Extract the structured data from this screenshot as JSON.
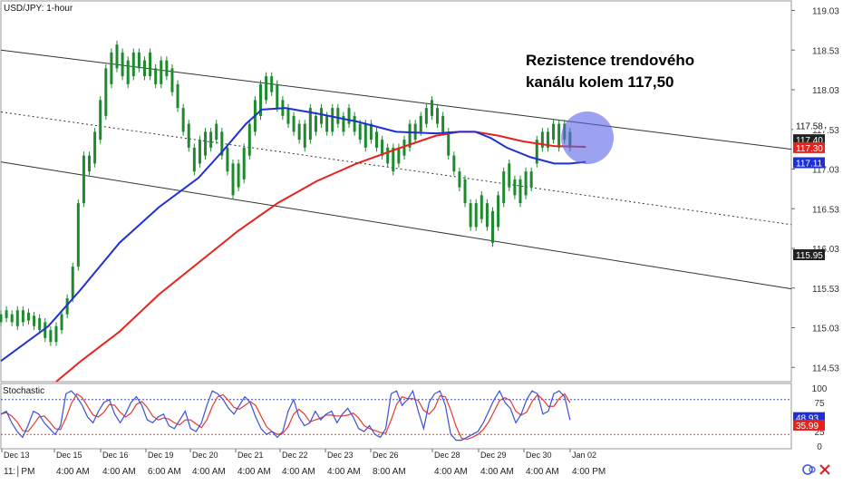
{
  "header": {
    "symbol_label": "USD/JPY: 1-hour"
  },
  "annotation": {
    "line1": "Rezistence trendového",
    "line2": "kanálu kolem 117,50"
  },
  "colors": {
    "ma_fast": "#1f2fd6",
    "ma_slow": "#e8221b",
    "stoch_k": "#3b4fd8",
    "stoch_d": "#e53a2f",
    "candle": "#1e8a2e",
    "highlight": "#5a63e6",
    "price_tag_dark": "#222222",
    "price_tag_red": "#e8221b",
    "price_tag_blue": "#1f2fd6"
  },
  "chart_data": {
    "type": "candlestick",
    "price_axis": {
      "ylim": [
        114.35,
        119.15
      ],
      "tick_labels": [
        "119.03",
        "118.53",
        "118.03",
        "117.53",
        "117.03",
        "116.53",
        "116.03",
        "115.53",
        "115.03",
        "114.53"
      ]
    },
    "x_labels_top": [
      "Dec 13",
      "Dec 15",
      "Dec 16",
      "Dec 19",
      "Dec 20",
      "Dec 21",
      "Dec 22",
      "Dec 23",
      "Dec 26",
      "Dec 28",
      "Dec 29",
      "Dec 30",
      "Jan 02"
    ],
    "x_labels_bottom": [
      "11:│PM",
      "4:00 AM",
      "4:00 AM",
      "6:00 AM",
      "4:00 AM",
      "4:00 AM",
      "4:00 AM",
      "4:00 AM",
      "8:00 AM",
      "4:00 AM",
      "4:00 AM",
      "4:00 AM",
      "4:00 PM"
    ],
    "price_tags": [
      {
        "label": "117.58",
        "value": 117.58,
        "style": "plain"
      },
      {
        "label": "117.40",
        "value": 117.4,
        "style": "dark"
      },
      {
        "label": "117.30",
        "value": 117.3,
        "style": "red"
      },
      {
        "label": "117.11",
        "value": 117.11,
        "style": "blue"
      },
      {
        "label": "115.95",
        "value": 115.95,
        "style": "dark"
      }
    ],
    "channel": {
      "upper": [
        [
          0.0,
          118.53
        ],
        [
          1.0,
          117.28
        ]
      ],
      "middle": [
        [
          0.0,
          117.75
        ],
        [
          1.0,
          116.33
        ]
      ],
      "lower": [
        [
          0.0,
          117.12
        ],
        [
          1.0,
          115.52
        ]
      ]
    },
    "ma_fast": [
      [
        0.0,
        114.61
      ],
      [
        0.03,
        114.83
      ],
      [
        0.06,
        115.05
      ],
      [
        0.1,
        115.5
      ],
      [
        0.15,
        116.1
      ],
      [
        0.2,
        116.55
      ],
      [
        0.25,
        116.92
      ],
      [
        0.28,
        117.25
      ],
      [
        0.31,
        117.6
      ],
      [
        0.33,
        117.78
      ],
      [
        0.36,
        117.8
      ],
      [
        0.4,
        117.73
      ],
      [
        0.45,
        117.63
      ],
      [
        0.5,
        117.5
      ],
      [
        0.55,
        117.48
      ],
      [
        0.58,
        117.5
      ],
      [
        0.6,
        117.5
      ],
      [
        0.62,
        117.42
      ],
      [
        0.64,
        117.3
      ],
      [
        0.67,
        117.18
      ],
      [
        0.7,
        117.1
      ],
      [
        0.72,
        117.1
      ],
      [
        0.74,
        117.12
      ]
    ],
    "ma_slow": [
      [
        0.07,
        114.35
      ],
      [
        0.1,
        114.6
      ],
      [
        0.15,
        114.98
      ],
      [
        0.2,
        115.45
      ],
      [
        0.25,
        115.85
      ],
      [
        0.3,
        116.25
      ],
      [
        0.35,
        116.6
      ],
      [
        0.4,
        116.88
      ],
      [
        0.45,
        117.1
      ],
      [
        0.5,
        117.28
      ],
      [
        0.55,
        117.45
      ],
      [
        0.58,
        117.5
      ],
      [
        0.6,
        117.5
      ],
      [
        0.63,
        117.45
      ],
      [
        0.66,
        117.38
      ],
      [
        0.7,
        117.32
      ],
      [
        0.74,
        117.31
      ]
    ],
    "candles": [
      [
        115.1,
        115.2
      ],
      [
        115.15,
        115.25
      ],
      [
        115.1,
        115.2
      ],
      [
        115.05,
        115.25
      ],
      [
        115.1,
        115.25
      ],
      [
        115.12,
        115.22
      ],
      [
        115.05,
        115.18
      ],
      [
        115.0,
        115.15
      ],
      [
        114.9,
        115.1
      ],
      [
        114.85,
        115.0
      ],
      [
        114.85,
        115.05
      ],
      [
        115.0,
        115.2
      ],
      [
        115.2,
        115.4
      ],
      [
        115.4,
        115.8
      ],
      [
        115.8,
        116.6
      ],
      [
        116.6,
        117.2
      ],
      [
        117.0,
        117.2
      ],
      [
        117.1,
        117.5
      ],
      [
        117.4,
        117.9
      ],
      [
        117.7,
        118.3
      ],
      [
        118.1,
        118.5
      ],
      [
        118.3,
        118.6
      ],
      [
        118.2,
        118.5
      ],
      [
        118.1,
        118.4
      ],
      [
        118.2,
        118.5
      ],
      [
        118.3,
        118.5
      ],
      [
        118.2,
        118.4
      ],
      [
        118.2,
        118.5
      ],
      [
        118.1,
        118.3
      ],
      [
        118.1,
        118.4
      ],
      [
        118.2,
        118.4
      ],
      [
        118.0,
        118.3
      ],
      [
        117.8,
        118.1
      ],
      [
        117.5,
        117.8
      ],
      [
        117.3,
        117.6
      ],
      [
        117.0,
        117.3
      ],
      [
        117.1,
        117.4
      ],
      [
        117.2,
        117.5
      ],
      [
        117.3,
        117.5
      ],
      [
        117.4,
        117.6
      ],
      [
        117.2,
        117.5
      ],
      [
        117.0,
        117.3
      ],
      [
        116.7,
        117.1
      ],
      [
        116.8,
        117.1
      ],
      [
        116.9,
        117.3
      ],
      [
        117.2,
        117.6
      ],
      [
        117.5,
        117.9
      ],
      [
        117.7,
        118.1
      ],
      [
        117.9,
        118.2
      ],
      [
        118.0,
        118.2
      ],
      [
        117.8,
        118.1
      ],
      [
        117.7,
        117.9
      ],
      [
        117.6,
        117.8
      ],
      [
        117.5,
        117.7
      ],
      [
        117.4,
        117.6
      ],
      [
        117.3,
        117.6
      ],
      [
        117.4,
        117.8
      ],
      [
        117.5,
        117.7
      ],
      [
        117.6,
        117.8
      ],
      [
        117.5,
        117.7
      ],
      [
        117.5,
        117.8
      ],
      [
        117.6,
        117.8
      ],
      [
        117.5,
        117.7
      ],
      [
        117.6,
        117.8
      ],
      [
        117.5,
        117.7
      ],
      [
        117.4,
        117.6
      ],
      [
        117.3,
        117.6
      ],
      [
        117.4,
        117.6
      ],
      [
        117.3,
        117.5
      ],
      [
        117.2,
        117.4
      ],
      [
        117.1,
        117.3
      ],
      [
        117.0,
        117.3
      ],
      [
        117.1,
        117.3
      ],
      [
        117.2,
        117.4
      ],
      [
        117.3,
        117.6
      ],
      [
        117.4,
        117.6
      ],
      [
        117.5,
        117.7
      ],
      [
        117.6,
        117.8
      ],
      [
        117.7,
        117.9
      ],
      [
        117.6,
        117.8
      ],
      [
        117.5,
        117.7
      ],
      [
        117.2,
        117.5
      ],
      [
        117.0,
        117.2
      ],
      [
        116.8,
        117.0
      ],
      [
        116.6,
        116.9
      ],
      [
        116.3,
        116.6
      ],
      [
        116.3,
        116.6
      ],
      [
        116.4,
        116.7
      ],
      [
        116.3,
        116.6
      ],
      [
        116.1,
        116.5
      ],
      [
        116.3,
        116.7
      ],
      [
        116.6,
        117.0
      ],
      [
        116.8,
        117.1
      ],
      [
        116.7,
        116.9
      ],
      [
        116.6,
        116.9
      ],
      [
        116.7,
        117.0
      ],
      [
        116.8,
        117.0
      ],
      [
        117.1,
        117.4
      ],
      [
        117.3,
        117.5
      ],
      [
        117.3,
        117.5
      ],
      [
        117.4,
        117.6
      ],
      [
        117.3,
        117.6
      ],
      [
        117.4,
        117.6
      ],
      [
        117.3,
        117.5
      ]
    ],
    "stochastic": {
      "label": "Stochastic",
      "ylim": [
        0,
        100
      ],
      "tick_labels": [
        "100",
        "75",
        "50",
        "25",
        "0"
      ],
      "overbought": 80,
      "oversold": 20,
      "value_tags": [
        {
          "label": "48.93",
          "value": 48.93,
          "style": "blue"
        },
        {
          "label": "35.99",
          "value": 35.99,
          "style": "red"
        }
      ],
      "k": [
        55,
        60,
        40,
        25,
        15,
        35,
        60,
        55,
        40,
        30,
        20,
        35,
        90,
        95,
        85,
        70,
        50,
        40,
        60,
        75,
        80,
        55,
        40,
        55,
        75,
        85,
        70,
        45,
        40,
        50,
        55,
        35,
        30,
        45,
        60,
        30,
        25,
        40,
        70,
        95,
        90,
        80,
        65,
        55,
        70,
        85,
        75,
        50,
        30,
        20,
        25,
        15,
        25,
        60,
        80,
        50,
        35,
        40,
        60,
        45,
        55,
        60,
        40,
        55,
        65,
        50,
        30,
        25,
        35,
        20,
        15,
        30,
        90,
        95,
        70,
        80,
        95,
        60,
        30,
        75,
        90,
        95,
        70,
        20,
        10,
        10,
        15,
        20,
        25,
        40,
        60,
        80,
        95,
        75,
        65,
        40,
        55,
        80,
        95,
        90,
        55,
        60,
        90,
        95,
        85,
        45
      ]
    }
  }
}
